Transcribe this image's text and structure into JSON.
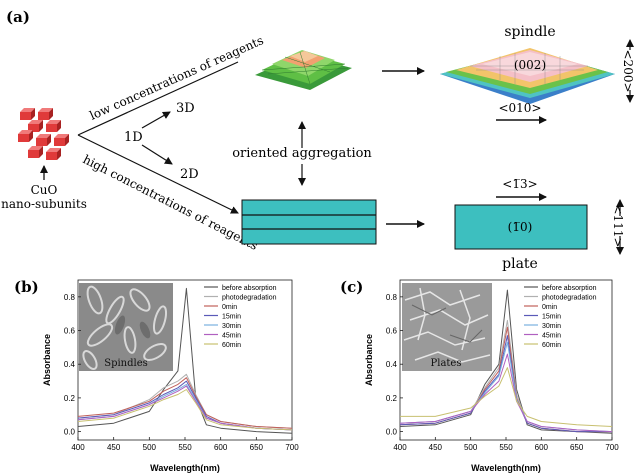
{
  "panel_a": {
    "label": "(a)",
    "subunits_label_1": "CuO",
    "subunits_label_2": "nano-subunits",
    "branch_low": "low concentrations of reagents",
    "branch_high": "high concentrations of reagents",
    "node_1d": "1D",
    "node_3d": "3D",
    "node_2d": "2D",
    "oriented_aggregation": "oriented aggregation",
    "spindle_title": "spindle",
    "spindle_face": "(002)",
    "spindle_side": "<200>",
    "spindle_axis": "<010>",
    "plate_direction": "<1̅3>",
    "plate_face": "(1̅0)",
    "plate_side": "<111>",
    "plate_title": "plate",
    "colors": {
      "plate_fill": "#3dbfbf",
      "subunit": "#e03a3a",
      "spindle_top": "#f2c46a",
      "spindle_green": "#6ac24a",
      "spindle_blue": "#3b7fc9",
      "spindle_teal": "#4fc3c3",
      "spindle_pink": "#f5c0c8"
    }
  },
  "panel_b": {
    "label": "(b)",
    "inset_text": "Spindles"
  },
  "panel_c": {
    "label": "(c)",
    "inset_text": "Plates"
  },
  "chart_data": [
    {
      "type": "line",
      "panel": "(b)",
      "xlabel": "Wavelength(nm)",
      "ylabel": "Absorbance",
      "xlim": [
        400,
        700
      ],
      "ylim": [
        -0.05,
        0.9
      ],
      "xticks": [
        400,
        450,
        500,
        550,
        600,
        650,
        700
      ],
      "yticks": [
        0.0,
        0.2,
        0.4,
        0.6,
        0.8
      ],
      "legend_position": "top-right",
      "x": [
        400,
        450,
        500,
        520,
        540,
        552,
        565,
        580,
        600,
        650,
        700
      ],
      "series": [
        {
          "name": "before absorption",
          "color": "#555555",
          "values": [
            0.03,
            0.05,
            0.12,
            0.25,
            0.36,
            0.85,
            0.2,
            0.04,
            0.02,
            0.0,
            -0.01
          ]
        },
        {
          "name": "photodegradation",
          "color": "#b0b0b0",
          "values": [
            0.08,
            0.1,
            0.19,
            0.26,
            0.3,
            0.34,
            0.22,
            0.1,
            0.06,
            0.03,
            0.02
          ]
        },
        {
          "name": "0min",
          "color": "#c0605a",
          "values": [
            0.09,
            0.11,
            0.18,
            0.24,
            0.28,
            0.32,
            0.21,
            0.1,
            0.06,
            0.03,
            0.02
          ]
        },
        {
          "name": "15min",
          "color": "#5a5ab8",
          "values": [
            0.08,
            0.1,
            0.17,
            0.22,
            0.26,
            0.3,
            0.2,
            0.09,
            0.05,
            0.02,
            0.01
          ]
        },
        {
          "name": "30min",
          "color": "#7ab0e0",
          "values": [
            0.07,
            0.09,
            0.16,
            0.21,
            0.25,
            0.28,
            0.19,
            0.08,
            0.05,
            0.02,
            0.01
          ]
        },
        {
          "name": "45min",
          "color": "#b060c0",
          "values": [
            0.07,
            0.09,
            0.16,
            0.2,
            0.24,
            0.27,
            0.18,
            0.08,
            0.05,
            0.02,
            0.01
          ]
        },
        {
          "name": "60min",
          "color": "#c8c070",
          "values": [
            0.06,
            0.08,
            0.15,
            0.19,
            0.22,
            0.25,
            0.17,
            0.07,
            0.04,
            0.02,
            0.01
          ]
        }
      ]
    },
    {
      "type": "line",
      "panel": "(c)",
      "xlabel": "Wavelength(nm)",
      "ylabel": "Absorbance",
      "xlim": [
        400,
        700
      ],
      "ylim": [
        -0.05,
        0.9
      ],
      "xticks": [
        400,
        450,
        500,
        550,
        600,
        650,
        700
      ],
      "yticks": [
        0.0,
        0.2,
        0.4,
        0.6,
        0.8
      ],
      "legend_position": "top-right",
      "x": [
        400,
        450,
        500,
        520,
        540,
        552,
        565,
        580,
        600,
        650,
        700
      ],
      "series": [
        {
          "name": "before absorption",
          "color": "#555555",
          "values": [
            0.03,
            0.04,
            0.1,
            0.28,
            0.4,
            0.84,
            0.25,
            0.04,
            0.01,
            0.0,
            -0.01
          ]
        },
        {
          "name": "photodegradation",
          "color": "#b0b0b0",
          "values": [
            0.05,
            0.06,
            0.12,
            0.26,
            0.38,
            0.66,
            0.22,
            0.05,
            0.02,
            0.0,
            0.0
          ]
        },
        {
          "name": "0min",
          "color": "#c0605a",
          "values": [
            0.04,
            0.05,
            0.11,
            0.25,
            0.36,
            0.62,
            0.2,
            0.05,
            0.02,
            0.0,
            0.0
          ]
        },
        {
          "name": "15min",
          "color": "#5a5ab8",
          "values": [
            0.04,
            0.05,
            0.11,
            0.24,
            0.34,
            0.57,
            0.19,
            0.05,
            0.02,
            0.0,
            0.0
          ]
        },
        {
          "name": "30min",
          "color": "#7ab0e0",
          "values": [
            0.05,
            0.06,
            0.12,
            0.23,
            0.33,
            0.53,
            0.19,
            0.06,
            0.03,
            0.01,
            0.0
          ]
        },
        {
          "name": "45min",
          "color": "#b060c0",
          "values": [
            0.05,
            0.06,
            0.12,
            0.22,
            0.3,
            0.46,
            0.18,
            0.06,
            0.03,
            0.01,
            0.0
          ]
        },
        {
          "name": "60min",
          "color": "#c8c070",
          "values": [
            0.09,
            0.09,
            0.14,
            0.21,
            0.27,
            0.38,
            0.18,
            0.09,
            0.06,
            0.04,
            0.03
          ]
        }
      ]
    }
  ]
}
